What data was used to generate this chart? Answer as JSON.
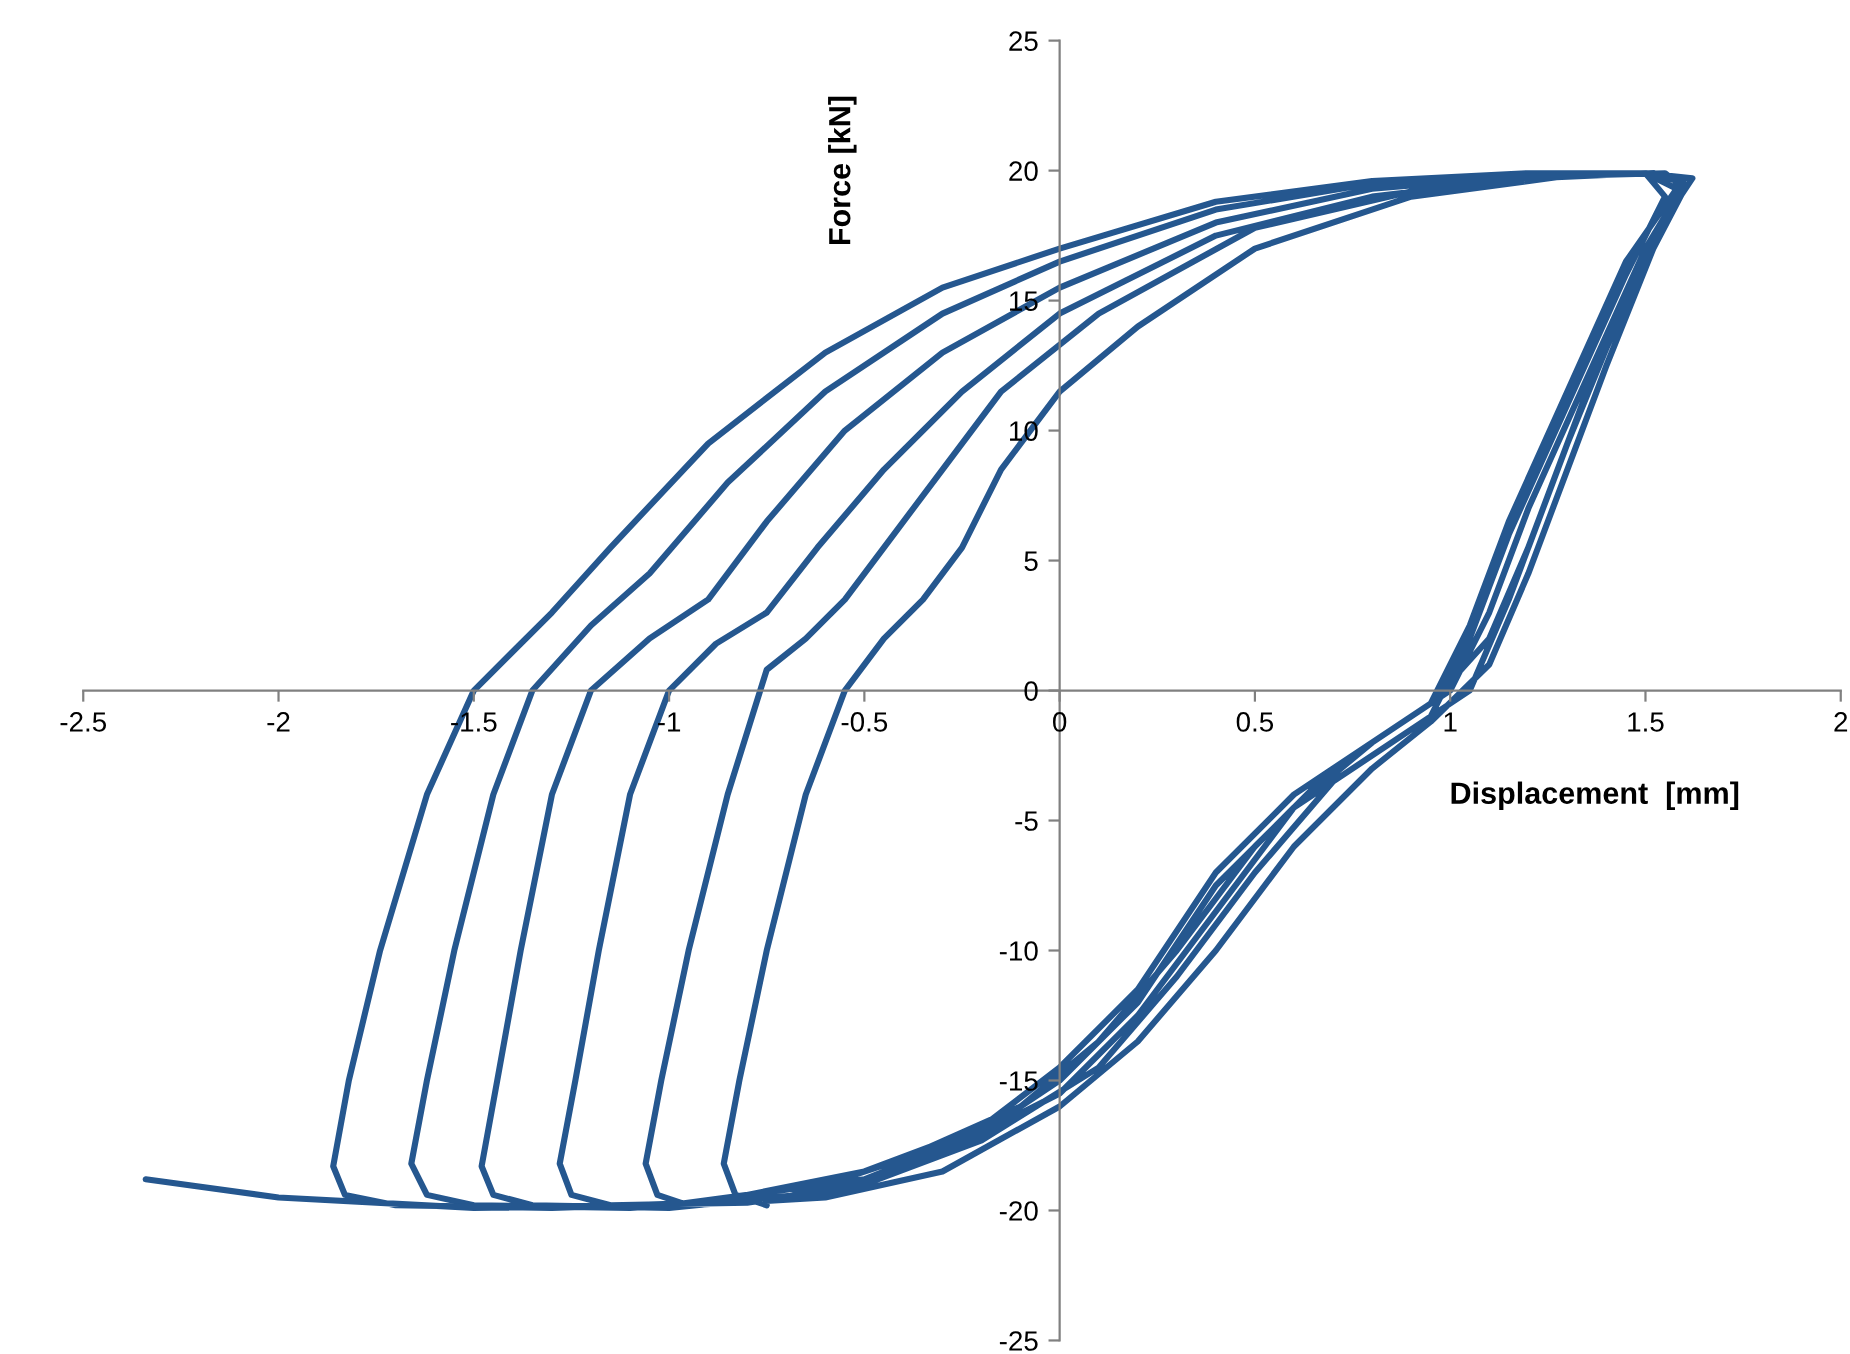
{
  "chart_data": {
    "type": "line",
    "xlabel": "Displacement  [mm]",
    "ylabel": "Force [kN]",
    "xlim": [
      -2.5,
      2
    ],
    "xticks": [
      -2.5,
      -2,
      -1.5,
      -1,
      -0.5,
      0,
      0.5,
      1,
      1.5,
      2
    ],
    "ylim": [
      -25,
      25
    ],
    "yticks": [
      -25,
      -20,
      -15,
      -10,
      -5,
      0,
      5,
      10,
      15,
      20,
      25
    ],
    "marker": "none",
    "line_style": "solid",
    "series": [
      {
        "color": "#25578f",
        "x": [
          -2.34,
          -2.0,
          -1.5,
          -1.0,
          -0.5,
          -0.2,
          0.0,
          0.2,
          0.4,
          0.6,
          0.8,
          0.95,
          1.05,
          1.15,
          1.3,
          1.45,
          1.55,
          1.5,
          1.2,
          0.8,
          0.4,
          0.0,
          -0.3,
          -0.6,
          -0.9,
          -1.15,
          -1.3,
          -1.5,
          -1.62,
          -1.74,
          -1.82,
          -1.86,
          -1.83,
          -1.7,
          -1.3,
          -0.9,
          -0.5,
          -0.2,
          0.0,
          0.2,
          0.4,
          0.6,
          0.8,
          0.95,
          1.05,
          1.15,
          1.3,
          1.45,
          1.58,
          1.5,
          1.2,
          0.8,
          0.4,
          0.0,
          -0.3,
          -0.6,
          -0.85,
          -1.05,
          -1.2,
          -1.35,
          -1.45,
          -1.55,
          -1.62,
          -1.66,
          -1.62,
          -1.5,
          -1.1,
          -0.7,
          -0.4,
          -0.1,
          0.1,
          0.3,
          0.5,
          0.7,
          0.85,
          1.0,
          1.1,
          1.2,
          1.35,
          1.5,
          1.6,
          1.52,
          1.2,
          0.8,
          0.4,
          0.0,
          -0.3,
          -0.55,
          -0.75,
          -0.9,
          -1.05,
          -1.2,
          -1.3,
          -1.38,
          -1.44,
          -1.48,
          -1.45,
          -1.35,
          -1.0,
          -0.6,
          -0.3,
          0.0,
          0.2,
          0.4,
          0.6,
          0.8,
          0.95,
          1.1,
          1.2,
          1.3,
          1.45,
          1.58,
          1.62,
          1.5,
          1.2,
          0.8,
          0.4,
          0.0,
          -0.25,
          -0.45,
          -0.62,
          -0.75,
          -0.88,
          -1.0,
          -1.1,
          -1.18,
          -1.24,
          -1.28,
          -1.25,
          -1.15,
          -0.8,
          -0.5,
          -0.2,
          0.1,
          0.3,
          0.5,
          0.7,
          0.9,
          1.05,
          1.15,
          1.25,
          1.35,
          1.5,
          1.6,
          1.55,
          1.3,
          0.9,
          0.5,
          0.1,
          -0.15,
          -0.3,
          -0.45,
          -0.55,
          -0.65,
          -0.75,
          -0.85,
          -0.95,
          -1.02,
          -1.06,
          -1.03,
          -0.95,
          -0.6,
          -0.3,
          0.0,
          0.2,
          0.4,
          0.6,
          0.8,
          0.95,
          1.1,
          1.2,
          1.3,
          1.4,
          1.52,
          1.6,
          1.55,
          1.3,
          0.9,
          0.5,
          0.2,
          0.0,
          -0.15,
          -0.25,
          -0.35,
          -0.45,
          -0.55,
          -0.65,
          -0.75,
          -0.82,
          -0.86,
          -0.83,
          -0.75
        ],
        "values": [
          -18.8,
          -19.5,
          -19.9,
          -19.8,
          -18.8,
          -17.0,
          -15.0,
          -12.0,
          -7.5,
          -4.5,
          -2.5,
          -1.0,
          2.0,
          6.0,
          11.0,
          16.0,
          19.0,
          19.9,
          19.9,
          19.6,
          18.8,
          17.0,
          15.5,
          13.0,
          9.5,
          5.5,
          3.0,
          0.0,
          -4.0,
          -10.0,
          -15.0,
          -18.3,
          -19.4,
          -19.8,
          -19.9,
          -19.7,
          -18.5,
          -16.8,
          -14.5,
          -11.5,
          -7.0,
          -4.0,
          -2.0,
          -0.5,
          2.5,
          6.5,
          11.5,
          16.5,
          19.3,
          19.9,
          19.9,
          19.5,
          18.5,
          16.5,
          14.5,
          11.5,
          8.0,
          4.5,
          2.5,
          0.0,
          -4.0,
          -10.0,
          -15.0,
          -18.2,
          -19.4,
          -19.8,
          -19.9,
          -19.5,
          -18.0,
          -16.0,
          -13.5,
          -10.0,
          -6.0,
          -3.0,
          -1.5,
          0.0,
          3.0,
          7.0,
          12.0,
          17.0,
          19.5,
          19.9,
          19.8,
          19.3,
          18.0,
          15.5,
          13.0,
          10.0,
          6.5,
          3.5,
          2.0,
          0.0,
          -4.0,
          -10.0,
          -15.0,
          -18.3,
          -19.4,
          -19.8,
          -19.9,
          -19.3,
          -17.8,
          -15.5,
          -12.5,
          -8.5,
          -4.5,
          -2.0,
          -0.5,
          2.0,
          5.5,
          9.5,
          15.0,
          18.8,
          19.7,
          19.9,
          19.7,
          19.0,
          17.5,
          14.5,
          11.5,
          8.5,
          5.5,
          3.0,
          1.8,
          0.0,
          -4.0,
          -10.0,
          -15.0,
          -18.2,
          -19.4,
          -19.8,
          -19.7,
          -19.0,
          -17.3,
          -14.5,
          -11.0,
          -7.0,
          -3.5,
          -1.5,
          0.0,
          3.5,
          7.5,
          11.5,
          16.5,
          19.3,
          19.9,
          19.8,
          19.2,
          17.8,
          14.5,
          11.5,
          8.5,
          5.5,
          3.5,
          2.0,
          0.8,
          -4.0,
          -10.0,
          -15.0,
          -18.2,
          -19.4,
          -19.8,
          -19.5,
          -18.5,
          -16.0,
          -13.5,
          -10.0,
          -6.0,
          -3.0,
          -1.2,
          1.0,
          4.5,
          8.5,
          12.5,
          17.0,
          19.3,
          19.9,
          19.8,
          19.0,
          17.0,
          14.0,
          11.5,
          8.5,
          5.5,
          3.5,
          2.0,
          0.0,
          -4.0,
          -10.0,
          -15.0,
          -18.2,
          -19.4,
          -19.8
        ]
      }
    ]
  }
}
